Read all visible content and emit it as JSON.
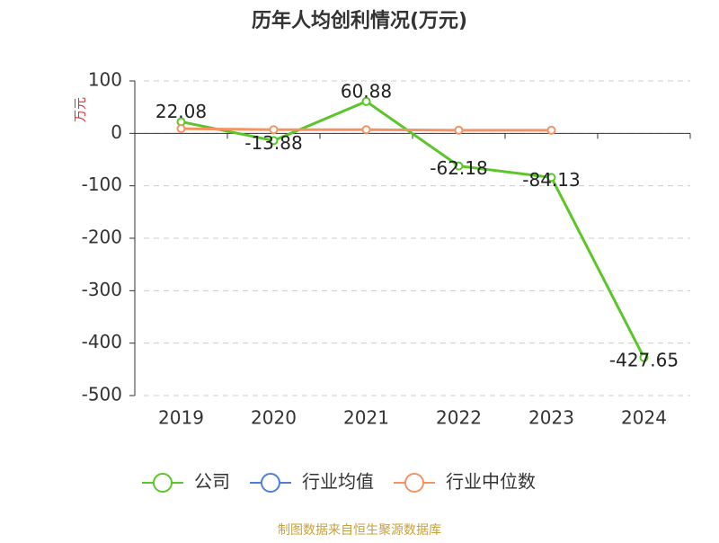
{
  "chart_data": {
    "type": "line",
    "title": "历年人均创利情况(万元)",
    "y_label": "万元",
    "categories": [
      "2019",
      "2020",
      "2021",
      "2022",
      "2023",
      "2024"
    ],
    "series": [
      {
        "name": "公司",
        "color": "#5cc52a",
        "values": [
          22.08,
          -13.88,
          60.88,
          -62.18,
          -84.13,
          -427.65
        ]
      },
      {
        "name": "行业均值",
        "color": "#4f7fd9",
        "values": [
          null,
          null,
          null,
          null,
          null,
          null
        ]
      },
      {
        "name": "行业中位数",
        "color": "#f59363",
        "values": [
          9,
          7,
          7,
          6,
          6,
          null
        ]
      }
    ],
    "ylim": [
      -500,
      100
    ],
    "yticks": [
      100,
      0,
      -100,
      -200,
      -300,
      -400,
      -500
    ],
    "grid": true,
    "source": "制图数据来自恒生聚源数据库"
  }
}
